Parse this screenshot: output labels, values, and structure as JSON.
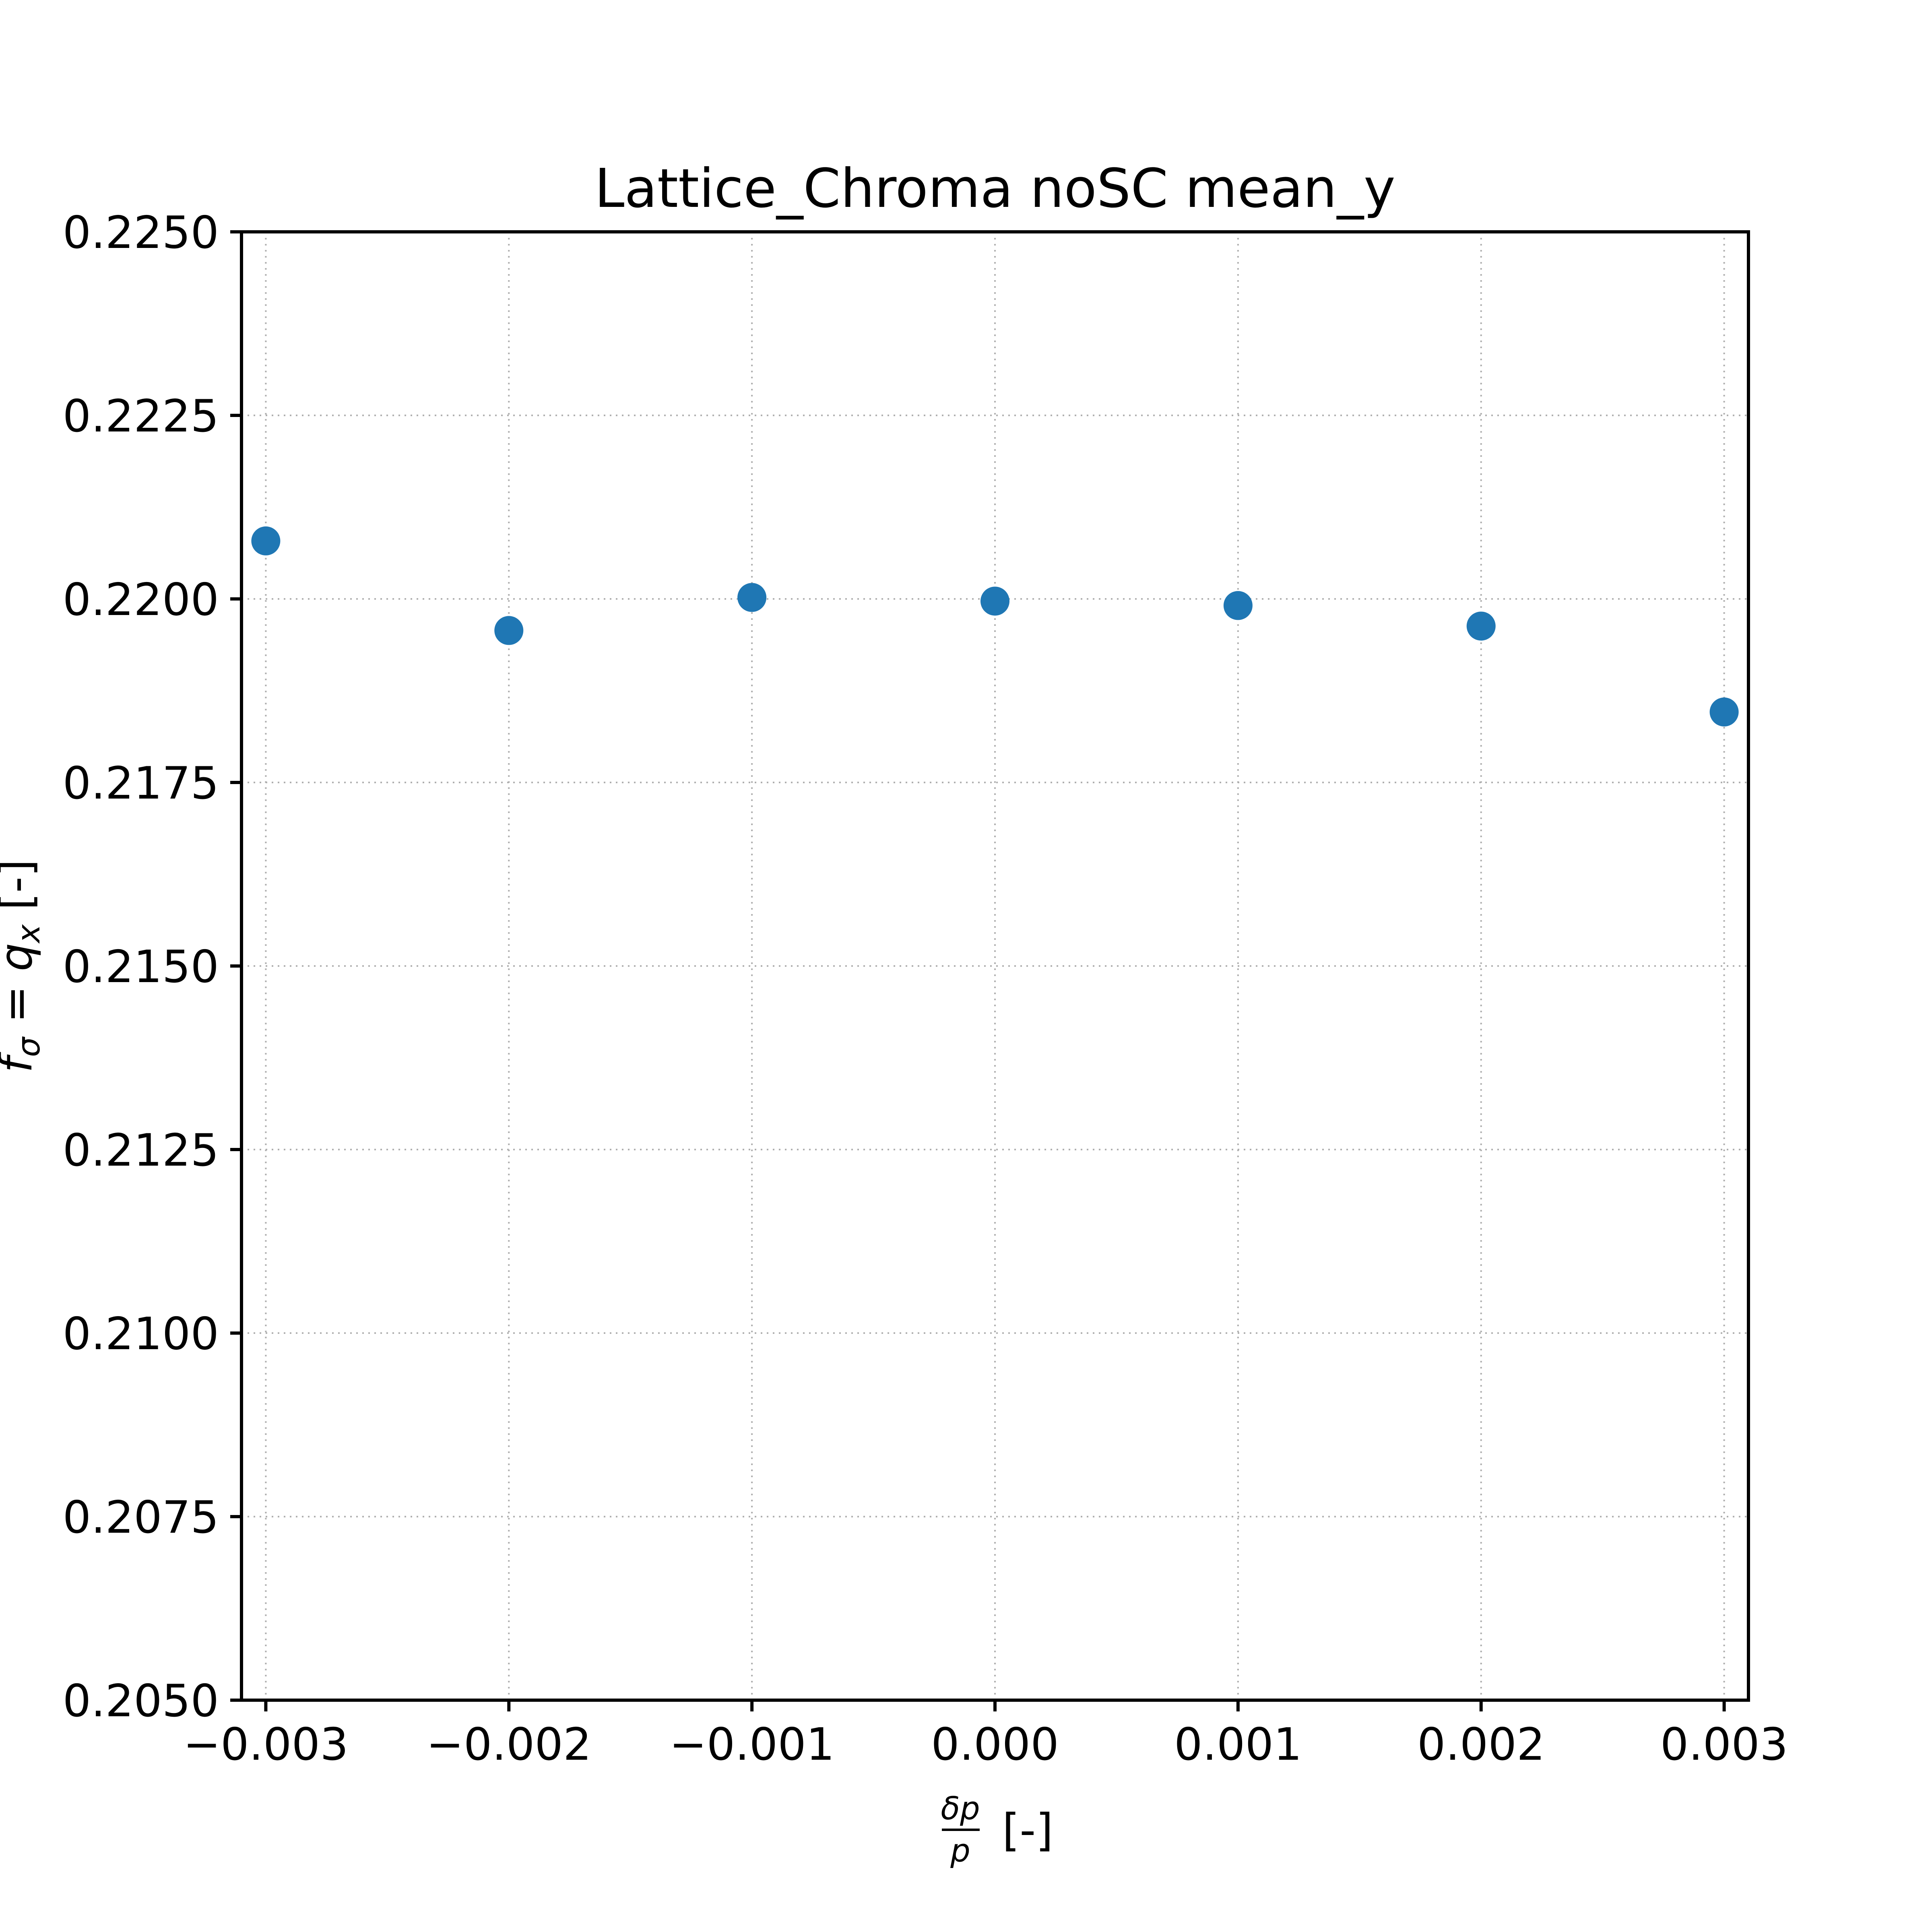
{
  "chart_data": {
    "type": "scatter",
    "title": "Lattice_Chroma noSC mean_y",
    "xlabel": "[-]",
    "xlabel_fraction": {
      "numerator": "δp",
      "denominator": "p"
    },
    "ylabel": "f",
    "ylabel_sub": "σ",
    "ylabel_rest": " = q",
    "ylabel_sub2": "x",
    "ylabel_tail": " [-]",
    "xlim": [
      -0.0031,
      0.0031
    ],
    "ylim": [
      0.205,
      0.225
    ],
    "xticks": [
      -0.003,
      -0.002,
      -0.001,
      0.0,
      0.001,
      0.002,
      0.003
    ],
    "xtick_labels": [
      "−0.003",
      "−0.002",
      "−0.001",
      "0.000",
      "0.001",
      "0.002",
      "0.003"
    ],
    "yticks": [
      0.205,
      0.2075,
      0.21,
      0.2125,
      0.215,
      0.2175,
      0.22,
      0.2225,
      0.225
    ],
    "ytick_labels": [
      "0.2050",
      "0.2075",
      "0.2100",
      "0.2125",
      "0.2150",
      "0.2175",
      "0.2200",
      "0.2225",
      "0.2250"
    ],
    "grid": true,
    "marker_color": "#1f77b4",
    "series": [
      {
        "x": [
          -0.003,
          -0.002,
          -0.001,
          0.0,
          0.001,
          0.002,
          0.003
        ],
        "y": [
          0.22079,
          0.21957,
          0.22002,
          0.21997,
          0.21991,
          0.21963,
          0.21846
        ]
      }
    ]
  }
}
